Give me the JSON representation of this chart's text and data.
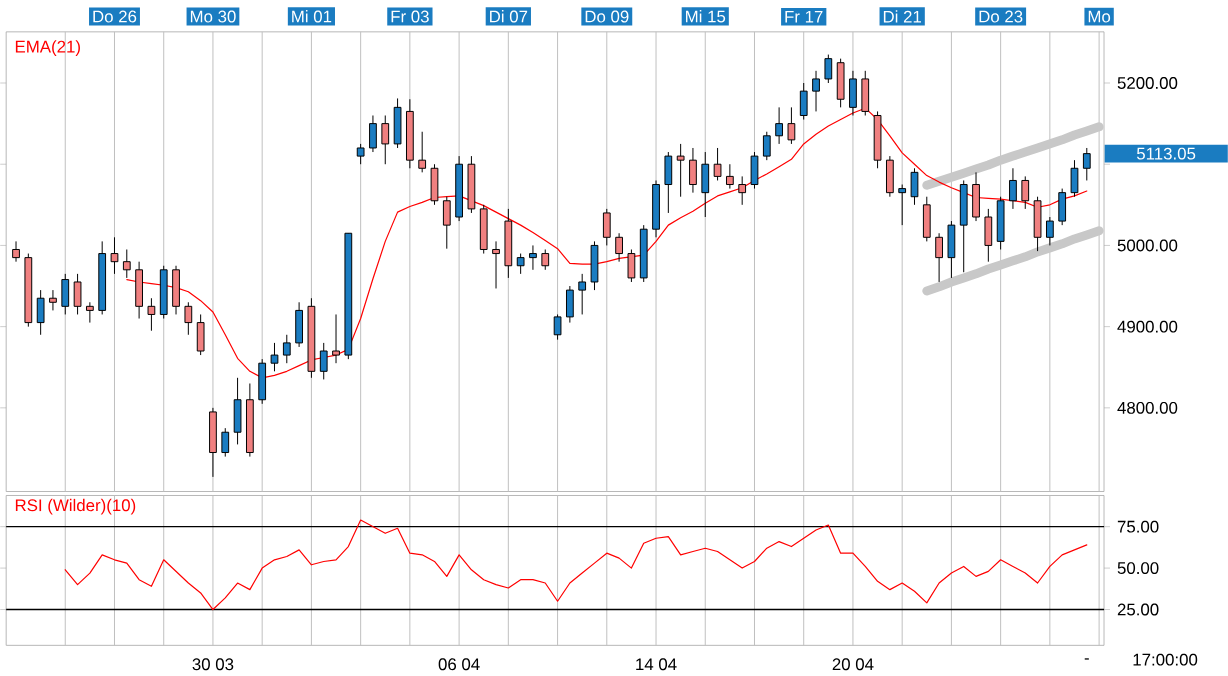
{
  "chart_data": [
    {
      "type": "candlestick",
      "ylim": [
        4697,
        5263
      ],
      "grid": "x",
      "categories": [
        null,
        null,
        null,
        null,
        null,
        null,
        null,
        null,
        "Do 26",
        null,
        null,
        null,
        null,
        null,
        null,
        null,
        "Mo 30",
        null,
        null,
        null,
        null,
        null,
        null,
        null,
        "Mi 01",
        null,
        null,
        null,
        null,
        null,
        null,
        null,
        "Fr 03",
        null,
        null,
        null,
        null,
        null,
        null,
        null,
        "Di 07",
        null,
        null,
        null,
        null,
        null,
        null,
        null,
        "Do 09",
        null,
        null,
        null,
        null,
        null,
        null,
        null,
        "Mi 15",
        null,
        null,
        null,
        null,
        null,
        null,
        null,
        "Fr 17",
        null,
        null,
        null,
        null,
        null,
        null,
        null,
        "Di 21",
        null,
        null,
        null,
        null,
        null,
        null,
        null,
        "Do 23",
        null,
        null,
        null,
        null,
        null,
        null,
        null,
        "Mo"
      ],
      "yticks": [
        {
          "value": 4800,
          "label": "4800.00"
        },
        {
          "value": 4900,
          "label": "4900.00"
        },
        {
          "value": 5000,
          "label": "5000.00"
        },
        {
          "value": 5100,
          "label": null
        },
        {
          "value": 5200,
          "label": "5200.00"
        }
      ],
      "annotations": [
        "5113.05"
      ],
      "series": [
        {
          "type": "line",
          "color": "#c8c8c8",
          "values": [
            null,
            null,
            null,
            null,
            null,
            null,
            null,
            null,
            null,
            null,
            null,
            null,
            null,
            null,
            null,
            null,
            null,
            null,
            null,
            null,
            null,
            null,
            null,
            null,
            null,
            null,
            null,
            null,
            null,
            null,
            null,
            null,
            null,
            null,
            null,
            null,
            null,
            null,
            null,
            null,
            null,
            null,
            null,
            null,
            null,
            null,
            null,
            null,
            null,
            null,
            null,
            null,
            null,
            null,
            null,
            null,
            null,
            null,
            null,
            null,
            null,
            null,
            null,
            null,
            null,
            null,
            null,
            null,
            null,
            null,
            null,
            null,
            null,
            null,
            5074,
            5079,
            5084,
            5089,
            5094,
            5099,
            5105,
            5110,
            5115,
            5120,
            5125,
            5130,
            5136,
            5141,
            5146
          ]
        },
        {
          "type": "line",
          "color": "#c8c8c8",
          "values": [
            null,
            null,
            null,
            null,
            null,
            null,
            null,
            null,
            null,
            null,
            null,
            null,
            null,
            null,
            null,
            null,
            null,
            null,
            null,
            null,
            null,
            null,
            null,
            null,
            null,
            null,
            null,
            null,
            null,
            null,
            null,
            null,
            null,
            null,
            null,
            null,
            null,
            null,
            null,
            null,
            null,
            null,
            null,
            null,
            null,
            null,
            null,
            null,
            null,
            null,
            null,
            null,
            null,
            null,
            null,
            null,
            null,
            null,
            null,
            null,
            null,
            null,
            null,
            null,
            null,
            null,
            null,
            null,
            null,
            null,
            null,
            null,
            null,
            null,
            4944,
            4949,
            4955,
            4960,
            4965,
            4971,
            4976,
            4981,
            4986,
            4992,
            4997,
            5002,
            5008,
            5013,
            5018
          ]
        },
        {
          "type": "line",
          "name": "EMA(21)",
          "color": "#ff0000",
          "values": [
            null,
            null,
            null,
            null,
            null,
            null,
            null,
            null,
            null,
            4958,
            4955,
            4953,
            4951,
            4948,
            4943,
            4932,
            4918,
            4890,
            4861,
            4845,
            4837,
            4840,
            4845,
            4852,
            4859,
            4862,
            4865,
            4872,
            4910,
            4959,
            5005,
            5041,
            5048,
            5053,
            5059,
            5060,
            5061,
            5055,
            5049,
            5041,
            5033,
            5025,
            5016,
            5006,
            4996,
            4978,
            4977,
            4977,
            4980,
            4984,
            4986,
            4988,
            5005,
            5025,
            5034,
            5042,
            5052,
            5061,
            5066,
            5071,
            5080,
            5088,
            5097,
            5106,
            5125,
            5137,
            5147,
            5155,
            5163,
            5169,
            5155,
            5135,
            5114,
            5100,
            5086,
            5078,
            5071,
            5065,
            5059,
            5058,
            5057,
            5055,
            5053,
            5047,
            5050,
            5057,
            5061,
            5067,
            null
          ]
        },
        {
          "ohlc": [
            [
              4995,
              5005,
              4980,
              4985
            ],
            [
              4985,
              4990,
              4900,
              4905
            ],
            [
              4905,
              4945,
              4890,
              4935
            ],
            [
              4935,
              4945,
              4920,
              4930
            ],
            [
              4925,
              4965,
              4915,
              4958
            ],
            [
              4955,
              4965,
              4915,
              4925
            ],
            [
              4925,
              4930,
              4905,
              4920
            ],
            [
              4920,
              5005,
              4915,
              4990
            ],
            [
              4990,
              5010,
              4965,
              4980
            ],
            [
              4980,
              4995,
              4960,
              4970
            ],
            [
              4970,
              4980,
              4910,
              4925
            ],
            [
              4925,
              4935,
              4895,
              4915
            ],
            [
              4915,
              4975,
              4910,
              4970
            ],
            [
              4970,
              4975,
              4915,
              4925
            ],
            [
              4925,
              4930,
              4890,
              4905
            ],
            [
              4905,
              4915,
              4865,
              4870
            ],
            [
              4795,
              4800,
              4715,
              4745
            ],
            [
              4745,
              4775,
              4740,
              4770
            ],
            [
              4770,
              4837,
              4755,
              4810
            ],
            [
              4810,
              4830,
              4740,
              4745
            ],
            [
              4810,
              4860,
              4805,
              4855
            ],
            [
              4855,
              4880,
              4845,
              4865
            ],
            [
              4865,
              4890,
              4855,
              4880
            ],
            [
              4880,
              4930,
              4875,
              4920
            ],
            [
              4925,
              4935,
              4837,
              4845
            ],
            [
              4845,
              4880,
              4835,
              4870
            ],
            [
              4870,
              4915,
              4855,
              4865
            ],
            [
              4865,
              5015,
              4860,
              5015
            ],
            [
              5110,
              5125,
              5100,
              5120
            ],
            [
              5120,
              5160,
              5115,
              5150
            ],
            [
              5150,
              5160,
              5100,
              5125
            ],
            [
              5125,
              5181,
              5120,
              5170
            ],
            [
              5165,
              5180,
              5095,
              5105
            ],
            [
              5105,
              5140,
              5090,
              5095
            ],
            [
              5095,
              5100,
              5050,
              5055
            ],
            [
              5055,
              5060,
              4996,
              5025
            ],
            [
              5035,
              5110,
              5030,
              5100
            ],
            [
              5100,
              5110,
              5040,
              5045
            ],
            [
              5045,
              5050,
              4990,
              4995
            ],
            [
              4995,
              5005,
              4947,
              4990
            ],
            [
              5030,
              5045,
              4960,
              4975
            ],
            [
              4975,
              4990,
              4965,
              4985
            ],
            [
              4985,
              5000,
              4970,
              4990
            ],
            [
              4990,
              4995,
              4970,
              4975
            ],
            [
              4890,
              4915,
              4884,
              4912
            ],
            [
              4912,
              4950,
              4905,
              4945
            ],
            [
              4945,
              4965,
              4915,
              4955
            ],
            [
              4955,
              5005,
              4945,
              5000
            ],
            [
              5040,
              5045,
              5000,
              5010
            ],
            [
              5010,
              5015,
              4980,
              4990
            ],
            [
              4990,
              4995,
              4955,
              4960
            ],
            [
              4960,
              5025,
              4955,
              5020
            ],
            [
              5020,
              5080,
              5010,
              5075
            ],
            [
              5075,
              5115,
              5040,
              5110
            ],
            [
              5110,
              5125,
              5060,
              5105
            ],
            [
              5105,
              5120,
              5065,
              5075
            ],
            [
              5065,
              5115,
              5035,
              5100
            ],
            [
              5100,
              5120,
              5080,
              5085
            ],
            [
              5085,
              5100,
              5070,
              5075
            ],
            [
              5075,
              5085,
              5050,
              5065
            ],
            [
              5075,
              5115,
              5070,
              5110
            ],
            [
              5110,
              5140,
              5105,
              5135
            ],
            [
              5135,
              5170,
              5125,
              5150
            ],
            [
              5150,
              5170,
              5125,
              5130
            ],
            [
              5160,
              5200,
              5155,
              5190
            ],
            [
              5190,
              5215,
              5165,
              5205
            ],
            [
              5205,
              5235,
              5200,
              5230
            ],
            [
              5225,
              5230,
              5170,
              5180
            ],
            [
              5170,
              5215,
              5160,
              5205
            ],
            [
              5205,
              5215,
              5160,
              5165
            ],
            [
              5160,
              5165,
              5095,
              5105
            ],
            [
              5105,
              5110,
              5060,
              5065
            ],
            [
              5065,
              5075,
              5025,
              5070
            ],
            [
              5060,
              5095,
              5050,
              5090
            ],
            [
              5050,
              5060,
              5005,
              5010
            ],
            [
              5010,
              5015,
              4955,
              4985
            ],
            [
              4985,
              5030,
              4960,
              5025
            ],
            [
              5025,
              5080,
              4967,
              5075
            ],
            [
              5075,
              5090,
              5030,
              5035
            ],
            [
              5035,
              5045,
              4980,
              5000
            ],
            [
              5005,
              5060,
              4995,
              5055
            ],
            [
              5055,
              5095,
              5045,
              5080
            ],
            [
              5080,
              5085,
              5045,
              5055
            ],
            [
              5055,
              5060,
              4993,
              5010
            ],
            [
              5010,
              5035,
              5000,
              5030
            ],
            [
              5030,
              5070,
              5025,
              5065
            ],
            [
              5065,
              5105,
              5060,
              5095
            ],
            [
              5095,
              5120,
              5080,
              5113.05
            ],
            null
          ],
          "colors": [
            "#f08080",
            "#f08080",
            "#1a7cc1",
            "#f08080",
            "#1a7cc1",
            "#f08080",
            "#f08080",
            "#1a7cc1",
            "#f08080",
            "#f08080",
            "#f08080",
            "#f08080",
            "#1a7cc1",
            "#f08080",
            "#f08080",
            "#f08080",
            "#f08080",
            "#1a7cc1",
            "#1a7cc1",
            "#f08080",
            "#1a7cc1",
            "#1a7cc1",
            "#1a7cc1",
            "#1a7cc1",
            "#f08080",
            "#1a7cc1",
            "#f08080",
            "#1a7cc1",
            "#1a7cc1",
            "#1a7cc1",
            "#f08080",
            "#1a7cc1",
            "#f08080",
            "#f08080",
            "#f08080",
            "#f08080",
            "#1a7cc1",
            "#f08080",
            "#f08080",
            "#f08080",
            "#f08080",
            "#1a7cc1",
            "#1a7cc1",
            "#f08080",
            "#1a7cc1",
            "#1a7cc1",
            "#1a7cc1",
            "#1a7cc1",
            "#f08080",
            "#f08080",
            "#f08080",
            "#1a7cc1",
            "#1a7cc1",
            "#1a7cc1",
            "#f08080",
            "#f08080",
            "#1a7cc1",
            "#f08080",
            "#f08080",
            "#f08080",
            "#1a7cc1",
            "#1a7cc1",
            "#1a7cc1",
            "#f08080",
            "#1a7cc1",
            "#1a7cc1",
            "#1a7cc1",
            "#f08080",
            "#1a7cc1",
            "#f08080",
            "#f08080",
            "#f08080",
            "#1a7cc1",
            "#1a7cc1",
            "#f08080",
            "#f08080",
            "#1a7cc1",
            "#1a7cc1",
            "#f08080",
            "#f08080",
            "#1a7cc1",
            "#1a7cc1",
            "#f08080",
            "#f08080",
            "#1a7cc1",
            "#1a7cc1",
            "#1a7cc1",
            "#1a7cc1",
            null
          ]
        }
      ]
    },
    {
      "type": "line",
      "ylim": [
        3.4,
        93.8
      ],
      "grid": "x",
      "categories": [
        null,
        null,
        null,
        null,
        null,
        null,
        null,
        null,
        null,
        null,
        null,
        null,
        null,
        null,
        null,
        null,
        "30 03",
        null,
        null,
        null,
        null,
        null,
        null,
        null,
        null,
        null,
        null,
        null,
        null,
        null,
        null,
        null,
        null,
        null,
        null,
        null,
        "06 04",
        null,
        null,
        null,
        null,
        null,
        null,
        null,
        null,
        null,
        null,
        null,
        null,
        null,
        null,
        null,
        "14 04",
        null,
        null,
        null,
        null,
        null,
        null,
        null,
        null,
        null,
        null,
        null,
        null,
        null,
        null,
        null,
        "20 04",
        null,
        null,
        null,
        null,
        null,
        null,
        null,
        null,
        null,
        null,
        null,
        null,
        null,
        null,
        null,
        null,
        null,
        null,
        "-",
        null
      ],
      "yticks": [
        {
          "value": 25,
          "label": "25.00"
        },
        {
          "value": 50,
          "label": "50.00"
        },
        {
          "value": 75,
          "label": "75.00"
        }
      ],
      "ref_lines": [
        {
          "axis": "y",
          "value": 75,
          "color": "#000000"
        },
        {
          "axis": "y",
          "value": 25,
          "color": "#000000"
        }
      ],
      "annotations": [
        "17:00:00"
      ],
      "series": [
        {
          "name": "RSI (Wilder)(10)",
          "color": "#ff0000",
          "values": [
            null,
            null,
            null,
            null,
            49,
            40,
            47,
            58,
            55,
            53,
            43,
            39,
            55,
            48,
            41,
            35,
            25,
            32,
            41,
            37,
            50,
            55,
            57,
            61,
            52,
            54,
            55,
            63,
            79,
            75,
            71,
            74,
            59,
            58,
            54,
            45,
            58,
            49,
            43,
            40,
            38,
            43,
            43,
            41,
            30,
            41,
            47,
            53,
            59,
            56,
            50,
            65,
            68,
            69,
            58,
            60,
            62,
            60,
            55,
            50,
            54,
            62,
            66,
            63,
            68,
            73,
            76,
            59,
            59,
            51,
            42,
            37,
            41,
            36,
            29,
            41,
            47,
            51,
            45,
            48,
            55,
            51,
            47,
            41,
            51,
            58,
            61,
            64,
            null
          ]
        }
      ]
    }
  ]
}
